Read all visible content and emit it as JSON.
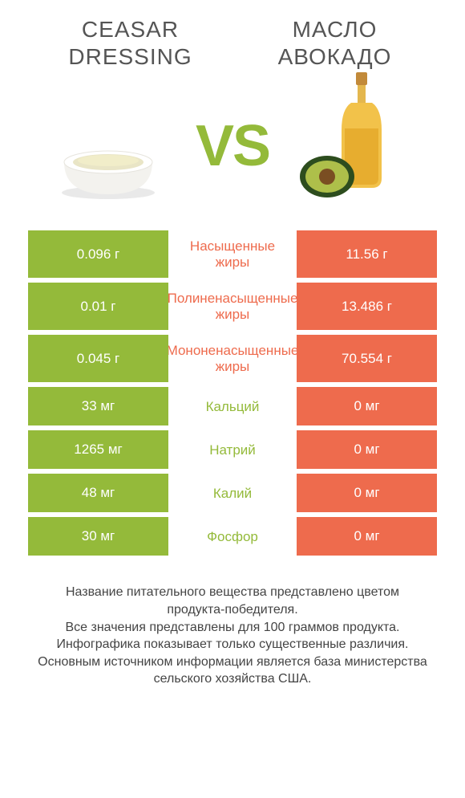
{
  "colors": {
    "green": "#94ba3a",
    "orange": "#ee6b4d",
    "text": "#333333",
    "bg": "#ffffff"
  },
  "left": {
    "title": "CEASAR DRESSING"
  },
  "right": {
    "title": "МАСЛО АВОКАДО"
  },
  "vs": "VS",
  "rows": [
    {
      "left": "0.096 г",
      "label": "Насыщенные жиры",
      "right": "11.56 г",
      "winner": "right",
      "multiline": true
    },
    {
      "left": "0.01 г",
      "label": "Полиненасыщенные жиры",
      "right": "13.486 г",
      "winner": "right",
      "multiline": true
    },
    {
      "left": "0.045 г",
      "label": "Мононенасыщенные жиры",
      "right": "70.554 г",
      "winner": "right",
      "multiline": true
    },
    {
      "left": "33 мг",
      "label": "Кальций",
      "right": "0 мг",
      "winner": "left",
      "multiline": false
    },
    {
      "left": "1265 мг",
      "label": "Натрий",
      "right": "0 мг",
      "winner": "left",
      "multiline": false
    },
    {
      "left": "48 мг",
      "label": "Калий",
      "right": "0 мг",
      "winner": "left",
      "multiline": false
    },
    {
      "left": "30 мг",
      "label": "Фосфор",
      "right": "0 мг",
      "winner": "left",
      "multiline": false
    }
  ],
  "footer": {
    "l1": "Название питательного вещества представлено цветом продукта-победителя.",
    "l2": "Все значения представлены для 100 граммов продукта.",
    "l3": "Инфографика показывает только существенные различия.",
    "l4": "Основным источником информации является база министерства сельского хозяйства США."
  }
}
